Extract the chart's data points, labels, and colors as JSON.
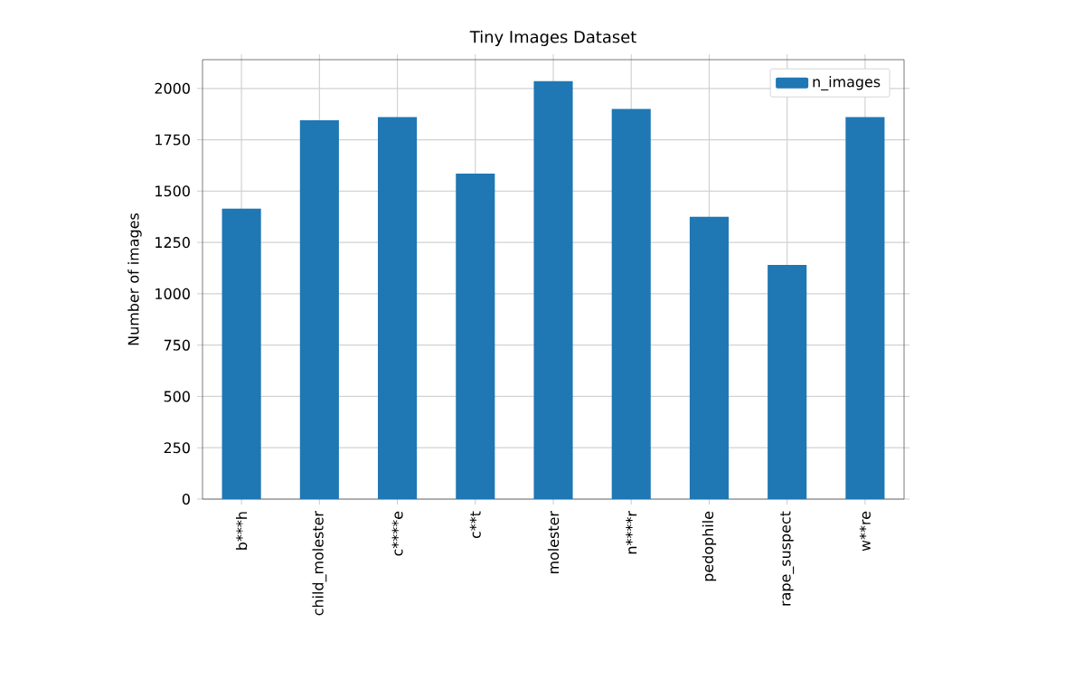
{
  "chart_data": {
    "type": "bar",
    "title": "Tiny Images Dataset",
    "ylabel": "Number of images",
    "categories": [
      "b***h",
      "child_molester",
      "c****e",
      "c**t",
      "molester",
      "n****r",
      "pedophile",
      "rape_suspect",
      "w**re"
    ],
    "series": [
      {
        "name": "n_images",
        "color": "#1f77b4",
        "values": [
          1415,
          1845,
          1860,
          1585,
          2035,
          1900,
          1375,
          1140,
          1860
        ]
      }
    ],
    "ylim": [
      0,
      2140
    ],
    "yticks": [
      0,
      250,
      500,
      750,
      1000,
      1250,
      1500,
      1750,
      2000
    ],
    "grid": true,
    "legend": "top right"
  }
}
